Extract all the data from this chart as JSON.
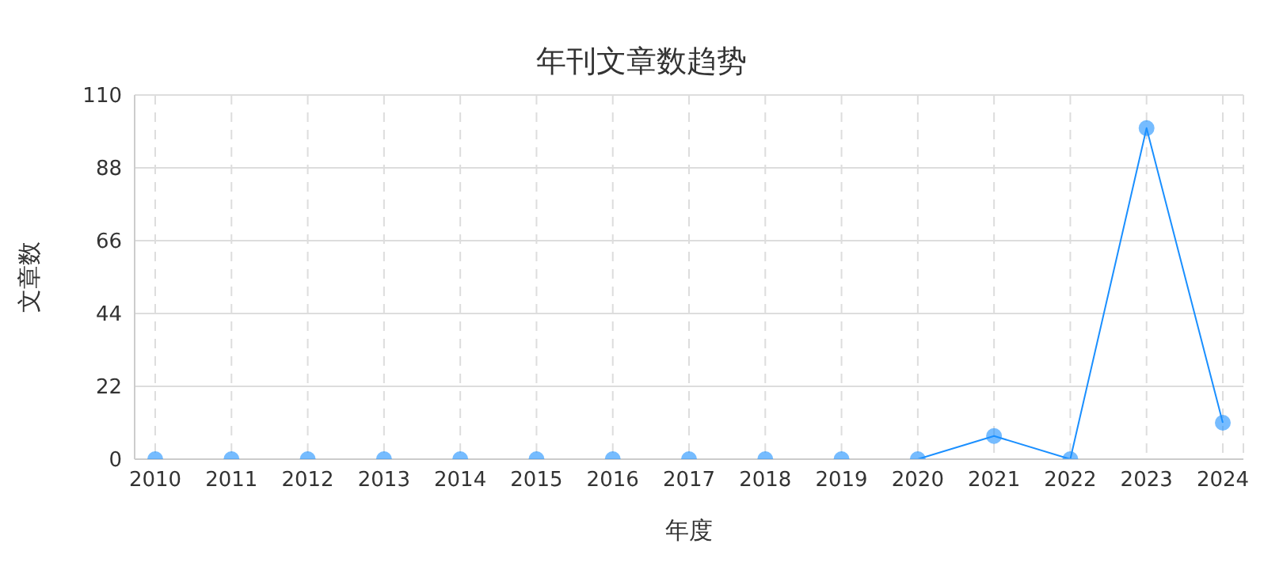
{
  "chart_data": {
    "type": "line",
    "title": "年刊文章数趋势",
    "xlabel": "年度",
    "ylabel": "文章数",
    "categories": [
      "2010",
      "2011",
      "2012",
      "2013",
      "2014",
      "2015",
      "2016",
      "2017",
      "2018",
      "2019",
      "2020",
      "2021",
      "2022",
      "2023",
      "2024"
    ],
    "series": [
      {
        "color": "#1a8fff",
        "values": [
          0,
          0,
          0,
          0,
          0,
          0,
          0,
          0,
          0,
          0,
          0,
          7,
          0,
          100,
          11
        ]
      }
    ],
    "ylim": [
      0,
      110
    ],
    "yticks": [
      0,
      22,
      44,
      66,
      88,
      110
    ],
    "grid": true,
    "marker": "circle",
    "line_style": "solid"
  }
}
